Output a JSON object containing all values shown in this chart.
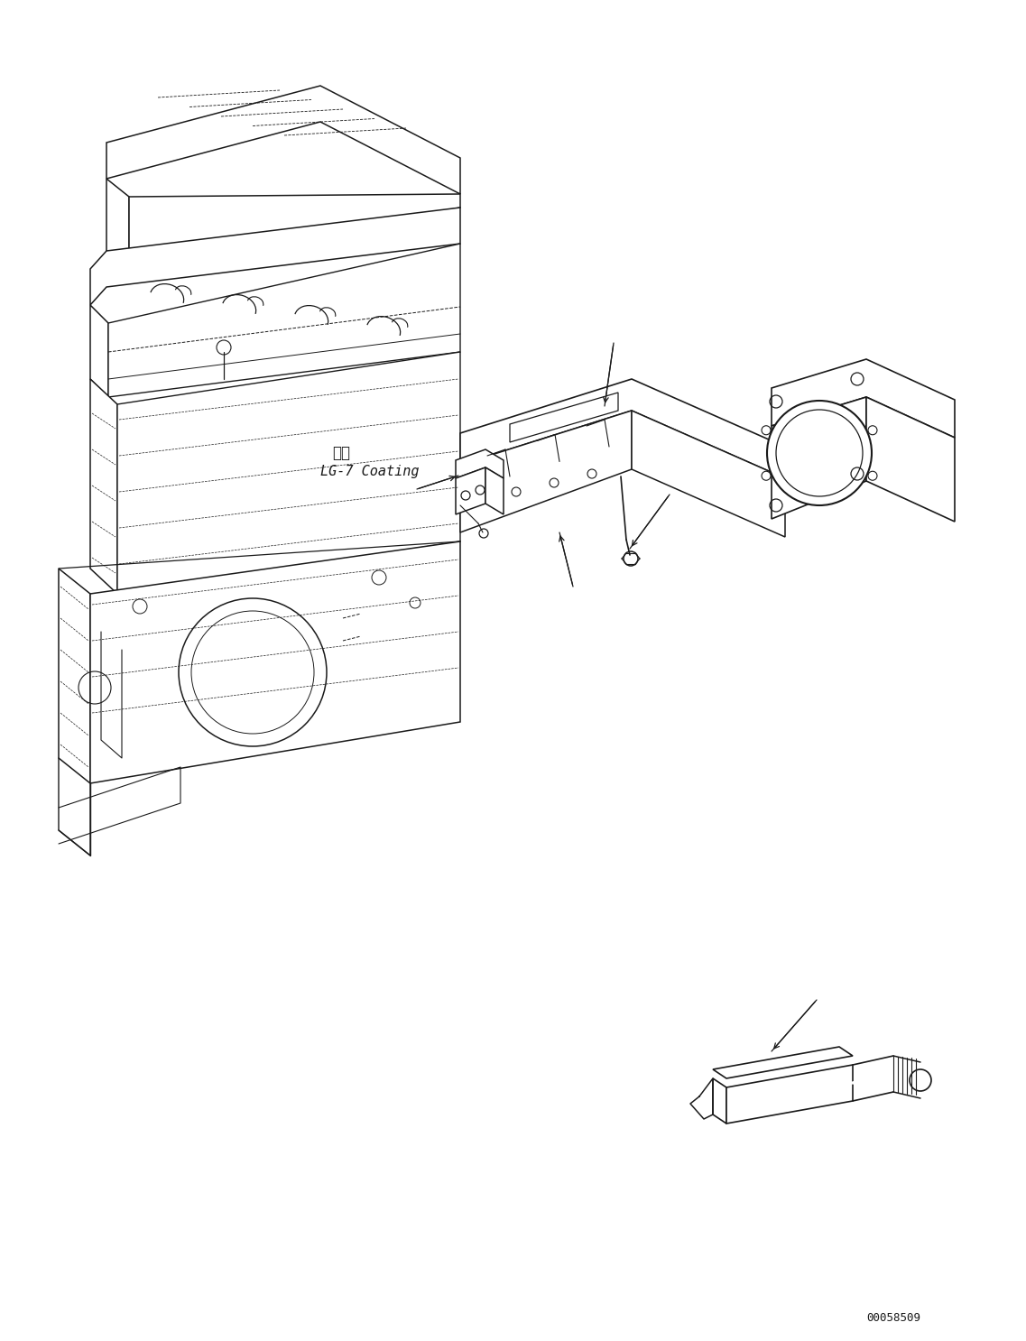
{
  "background_color": "#ffffff",
  "line_color": "#1a1a1a",
  "part_number": "00058509",
  "coating_label_jp": "塗布",
  "coating_label_en": "LG-7 Coating",
  "figure_width": 11.37,
  "figure_height": 14.86,
  "dpi": 100
}
